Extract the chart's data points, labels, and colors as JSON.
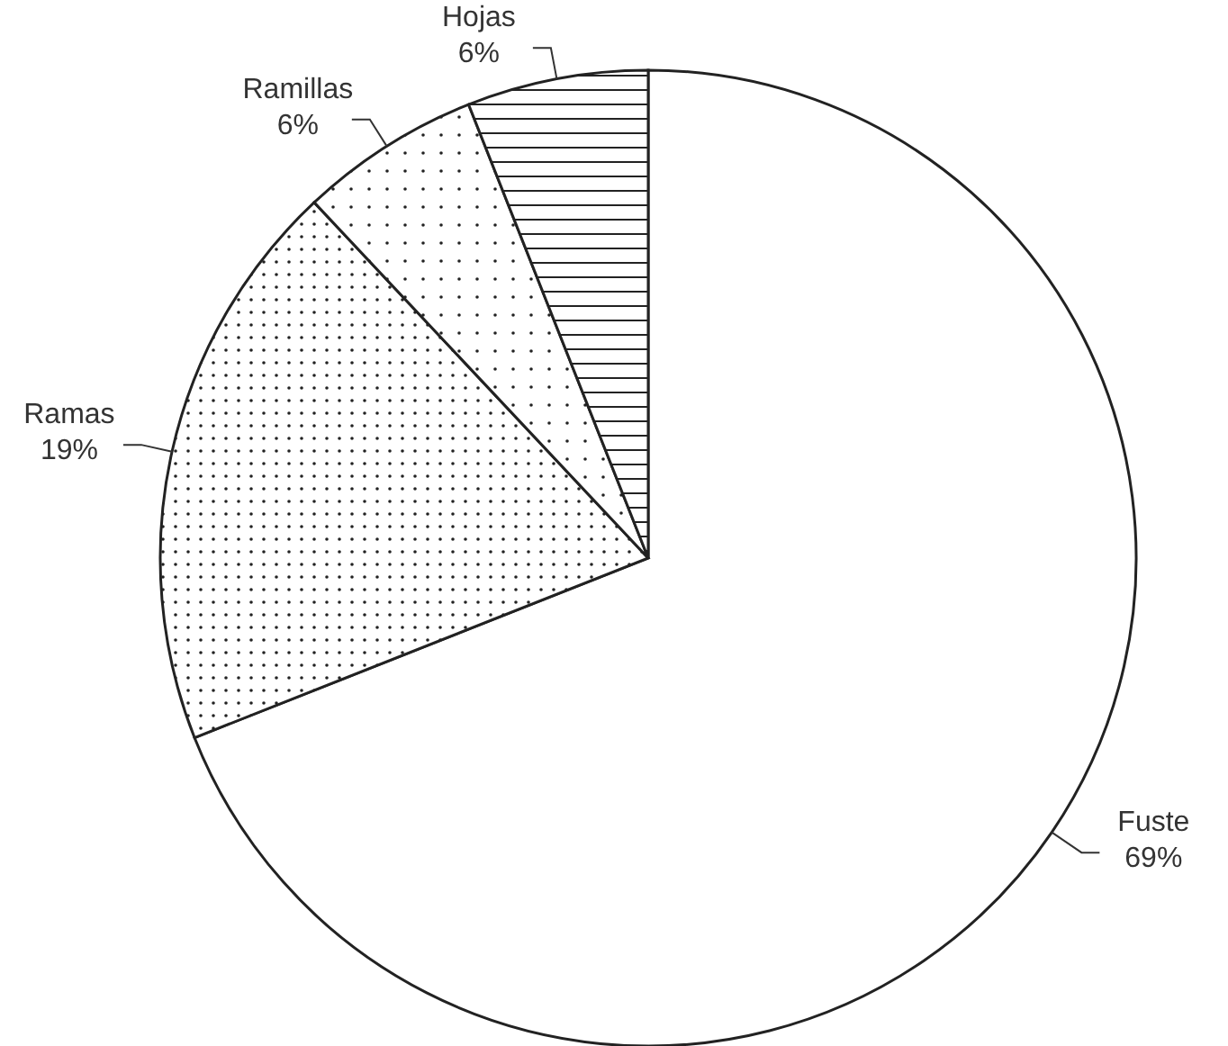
{
  "chart_data": {
    "type": "pie",
    "categories": [
      "Fuste",
      "Ramas",
      "Ramillas",
      "Hojas"
    ],
    "values": [
      69,
      19,
      6,
      6
    ],
    "value_labels": [
      "69%",
      "19%",
      "6%",
      "6%"
    ],
    "colors": [
      "#ffffff",
      "#222222",
      "#222222",
      "#222222"
    ]
  }
}
